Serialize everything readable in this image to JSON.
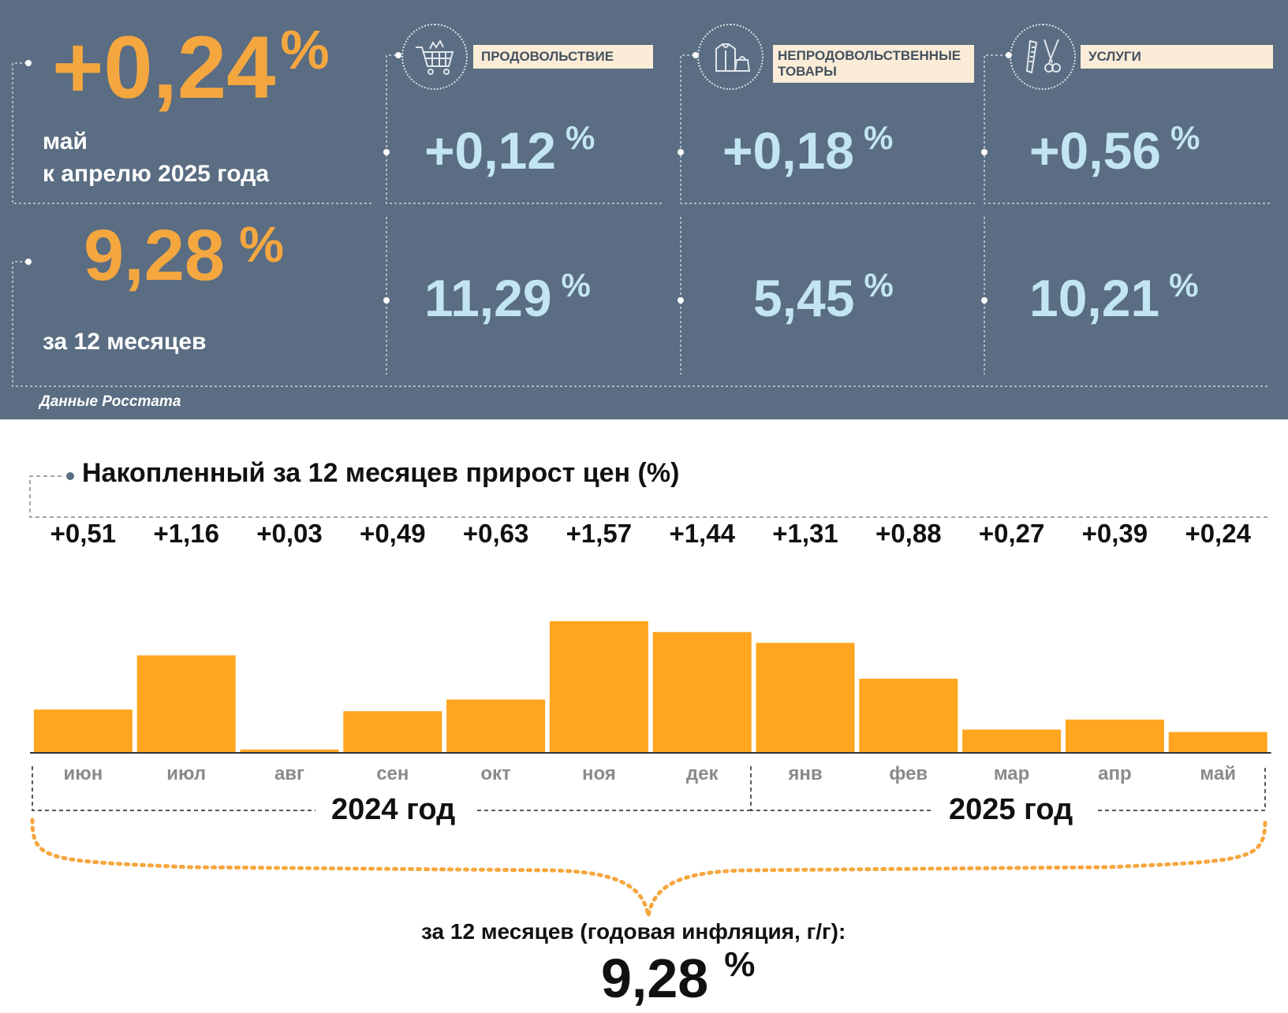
{
  "summary": {
    "monthly": {
      "value": "+0,24",
      "unit": "%",
      "line1": "май",
      "line2": "к апрелю 2025 года"
    },
    "annual": {
      "value": "9,28",
      "unit": "%",
      "caption": "за 12 месяцев"
    },
    "source": "Данные Росстата"
  },
  "categories": [
    {
      "label": "ПРОДОВОЛЬСТВИЕ",
      "icon": "shopping-cart-icon",
      "monthly": "+0,12",
      "annual": "11,29",
      "unit": "%"
    },
    {
      "label": "НЕПРОДОВОЛЬСТВЕННЫЕ ТОВАРЫ",
      "label_line1": "НЕПРОДОВОЛЬСТВЕННЫЕ",
      "label_line2": "ТОВАРЫ",
      "icon": "clothing-bag-icon",
      "monthly": "+0,18",
      "annual": "5,45",
      "unit": "%"
    },
    {
      "label": "УСЛУГИ",
      "icon": "comb-scissors-icon",
      "monthly": "+0,56",
      "annual": "10,21",
      "unit": "%"
    }
  ],
  "colors": {
    "panel": "#5a6d82",
    "accent": "#f5a73f",
    "light_blue": "#c3e5f2",
    "bar": "#ffa51f"
  },
  "chart_data": {
    "type": "bar",
    "title": "Накопленный за 12 месяцев прирост цен (%)",
    "categories": [
      "июн",
      "июл",
      "авг",
      "сен",
      "окт",
      "ноя",
      "дек",
      "янв",
      "фев",
      "мар",
      "апр",
      "май"
    ],
    "values": [
      0.51,
      1.16,
      0.03,
      0.49,
      0.63,
      1.57,
      1.44,
      1.31,
      0.88,
      0.27,
      0.39,
      0.24
    ],
    "value_labels": [
      "+0,51",
      "+1,16",
      "+0,03",
      "+0,49",
      "+0,63",
      "+1,57",
      "+1,44",
      "+1,31",
      "+0,88",
      "+0,27",
      "+0,39",
      "+0,24"
    ],
    "groups": [
      "2024 год",
      "2025 год"
    ],
    "ylim": [
      0,
      1.57
    ],
    "total_label": "за 12 месяцев (годовая инфляция, г/г):",
    "total_value": "9,28",
    "total_unit": "%"
  }
}
